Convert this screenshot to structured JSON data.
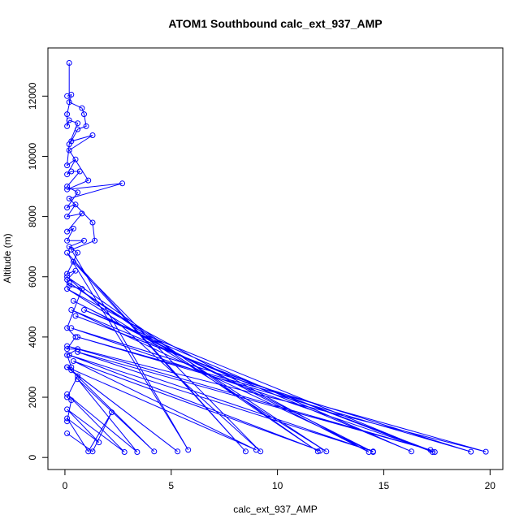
{
  "chart_data": {
    "type": "line",
    "title": "ATOM1 Southbound calc_ext_937_AMP",
    "xlabel": "calc_ext_937_AMP",
    "ylabel": "Altitude (m)",
    "xlim": [
      -0.8,
      20.6
    ],
    "ylim": [
      -400,
      13600
    ],
    "xticks": [
      0,
      5,
      10,
      15,
      20
    ],
    "yticks": [
      0,
      2000,
      4000,
      6000,
      8000,
      10000,
      12000
    ],
    "grid": false,
    "marker": "open-circle",
    "series_color": "#0000ff",
    "series": [
      {
        "points": [
          [
            0.2,
            13100
          ],
          [
            0.2,
            11800
          ],
          [
            0.8,
            11600
          ],
          [
            0.9,
            11400
          ],
          [
            1.0,
            11000
          ],
          [
            0.6,
            10900
          ],
          [
            0.3,
            10500
          ],
          [
            1.3,
            10700
          ],
          [
            0.2,
            10200
          ],
          [
            1.1,
            9200
          ],
          [
            0.1,
            8900
          ],
          [
            2.7,
            9100
          ],
          [
            0.2,
            8600
          ],
          [
            1.3,
            7800
          ],
          [
            1.4,
            7200
          ],
          [
            0.3,
            6900
          ],
          [
            5.8,
            250
          ],
          [
            0.1,
            6800
          ],
          [
            8.5,
            200
          ],
          [
            0.4,
            6500
          ],
          [
            9.2,
            200
          ],
          [
            0.1,
            6000
          ],
          [
            11.9,
            200
          ],
          [
            0.2,
            5800
          ],
          [
            12.3,
            200
          ],
          [
            0.1,
            5600
          ],
          [
            14.3,
            180
          ],
          [
            0.4,
            5200
          ],
          [
            14.5,
            180
          ],
          [
            0.3,
            4900
          ],
          [
            16.3,
            200
          ],
          [
            0.9,
            4900
          ],
          [
            17.3,
            180
          ],
          [
            0.5,
            4700
          ],
          [
            17.4,
            180
          ],
          [
            0.3,
            4300
          ],
          [
            19.1,
            190
          ],
          [
            0.6,
            4000
          ],
          [
            19.8,
            190
          ],
          [
            0.1,
            3700
          ],
          [
            17.2,
            250
          ],
          [
            0.6,
            3500
          ],
          [
            14.5,
            200
          ],
          [
            0.2,
            3400
          ],
          [
            12.0,
            220
          ],
          [
            0.4,
            3200
          ],
          [
            9.0,
            250
          ],
          [
            0.1,
            3000
          ],
          [
            5.3,
            200
          ],
          [
            0.3,
            2900
          ],
          [
            4.2,
            200
          ],
          [
            0.6,
            2600
          ],
          [
            3.4,
            180
          ],
          [
            0.1,
            2100
          ],
          [
            2.8,
            180
          ],
          [
            0.1,
            1600
          ],
          [
            1.6,
            500
          ],
          [
            0.1,
            1300
          ],
          [
            1.1,
            200
          ],
          [
            2.2,
            1500
          ],
          [
            1.3,
            200
          ],
          [
            0.1,
            800
          ]
        ]
      },
      {
        "points": [
          [
            0.1,
            12000
          ],
          [
            0.3,
            12050
          ],
          [
            0.1,
            11400
          ],
          [
            0.1,
            11000
          ],
          [
            0.2,
            11200
          ],
          [
            0.6,
            11100
          ],
          [
            0.2,
            10400
          ],
          [
            0.1,
            9700
          ],
          [
            0.5,
            9900
          ],
          [
            0.1,
            9400
          ],
          [
            0.3,
            9500
          ],
          [
            0.7,
            9500
          ],
          [
            0.1,
            9000
          ],
          [
            0.6,
            8800
          ],
          [
            0.1,
            8300
          ],
          [
            0.5,
            8400
          ],
          [
            0.1,
            8000
          ],
          [
            0.8,
            8100
          ],
          [
            0.1,
            7500
          ],
          [
            0.4,
            7600
          ],
          [
            0.1,
            7200
          ],
          [
            0.9,
            7200
          ],
          [
            0.2,
            7000
          ],
          [
            0.6,
            6800
          ],
          [
            0.1,
            6100
          ],
          [
            0.5,
            6200
          ],
          [
            0.1,
            5900
          ],
          [
            0.2,
            5700
          ],
          [
            0.8,
            5600
          ],
          [
            0.1,
            4300
          ],
          [
            0.5,
            4000
          ],
          [
            0.1,
            3600
          ],
          [
            0.6,
            3600
          ],
          [
            0.1,
            3400
          ],
          [
            0.3,
            3000
          ],
          [
            0.1,
            3000
          ],
          [
            0.6,
            2700
          ],
          [
            0.1,
            2000
          ],
          [
            0.3,
            1900
          ],
          [
            0.1,
            1200
          ]
        ]
      }
    ]
  }
}
